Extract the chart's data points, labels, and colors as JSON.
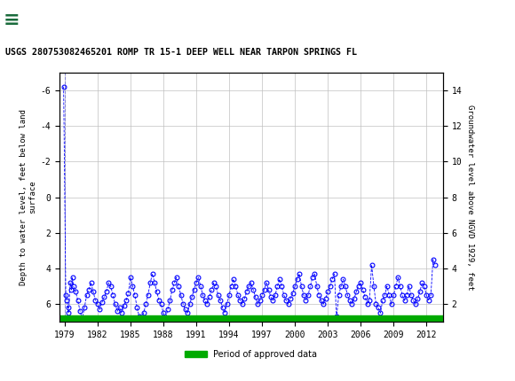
{
  "title": "USGS 280753082465201 ROMP TR 15-1 DEEP WELL NEAR TARPON SPRINGS FL",
  "ylabel_left": "Depth to water level, feet below land\nsurface",
  "ylabel_right": "Groundwater level above NGVD 1929, feet",
  "ylim_left": [
    7.0,
    -7.0
  ],
  "ylim_right": [
    1.0,
    15.0
  ],
  "xlim": [
    1978.5,
    2013.5
  ],
  "xticks": [
    1979,
    1982,
    1985,
    1988,
    1991,
    1994,
    1997,
    2000,
    2003,
    2006,
    2009,
    2012
  ],
  "yticks_left": [
    -6,
    -4,
    -2,
    0,
    2,
    4,
    6
  ],
  "yticks_right": [
    2,
    4,
    6,
    8,
    10,
    12,
    14
  ],
  "header_color": "#1a6b3c",
  "background_color": "#ffffff",
  "plot_bg_color": "#ffffff",
  "grid_color": "#c0c0c0",
  "data_color": "#0000ff",
  "legend_label": "Period of approved data",
  "legend_color": "#00aa00",
  "dashed_line_color": "#0000ff",
  "green_bar_color": "#00aa00",
  "data_points": [
    [
      1978.9,
      -6.2
    ],
    [
      1979.1,
      5.5
    ],
    [
      1979.2,
      5.8
    ],
    [
      1979.3,
      6.2
    ],
    [
      1979.35,
      6.5
    ],
    [
      1979.5,
      4.8
    ],
    [
      1979.6,
      5.2
    ],
    [
      1979.7,
      4.5
    ],
    [
      1979.8,
      5.0
    ],
    [
      1980.0,
      5.3
    ],
    [
      1980.2,
      5.8
    ],
    [
      1980.4,
      6.4
    ],
    [
      1980.6,
      6.8
    ],
    [
      1980.8,
      6.2
    ],
    [
      1981.0,
      5.5
    ],
    [
      1981.2,
      5.2
    ],
    [
      1981.4,
      4.8
    ],
    [
      1981.6,
      5.3
    ],
    [
      1981.8,
      5.8
    ],
    [
      1982.0,
      6.0
    ],
    [
      1982.2,
      6.3
    ],
    [
      1982.4,
      5.9
    ],
    [
      1982.6,
      5.6
    ],
    [
      1982.8,
      5.3
    ],
    [
      1983.0,
      4.8
    ],
    [
      1983.2,
      5.0
    ],
    [
      1983.4,
      5.5
    ],
    [
      1983.6,
      6.0
    ],
    [
      1983.8,
      6.4
    ],
    [
      1984.0,
      6.2
    ],
    [
      1984.2,
      6.5
    ],
    [
      1984.4,
      6.1
    ],
    [
      1984.6,
      5.8
    ],
    [
      1984.8,
      5.4
    ],
    [
      1985.0,
      4.5
    ],
    [
      1985.2,
      5.0
    ],
    [
      1985.4,
      5.5
    ],
    [
      1985.6,
      6.2
    ],
    [
      1985.8,
      6.7
    ],
    [
      1986.0,
      6.8
    ],
    [
      1986.2,
      6.5
    ],
    [
      1986.4,
      6.0
    ],
    [
      1986.6,
      5.5
    ],
    [
      1986.8,
      4.8
    ],
    [
      1987.0,
      4.3
    ],
    [
      1987.2,
      4.8
    ],
    [
      1987.4,
      5.3
    ],
    [
      1987.6,
      5.8
    ],
    [
      1987.8,
      6.0
    ],
    [
      1988.0,
      6.5
    ],
    [
      1988.2,
      6.8
    ],
    [
      1988.4,
      6.3
    ],
    [
      1988.6,
      5.8
    ],
    [
      1988.8,
      5.2
    ],
    [
      1989.0,
      4.8
    ],
    [
      1989.2,
      4.5
    ],
    [
      1989.4,
      5.0
    ],
    [
      1989.6,
      5.5
    ],
    [
      1989.8,
      6.0
    ],
    [
      1990.0,
      6.3
    ],
    [
      1990.2,
      6.5
    ],
    [
      1990.4,
      6.0
    ],
    [
      1990.6,
      5.6
    ],
    [
      1990.8,
      5.2
    ],
    [
      1991.0,
      4.8
    ],
    [
      1991.2,
      4.5
    ],
    [
      1991.4,
      5.0
    ],
    [
      1991.6,
      5.5
    ],
    [
      1991.8,
      5.8
    ],
    [
      1992.0,
      6.0
    ],
    [
      1992.2,
      5.6
    ],
    [
      1992.4,
      5.2
    ],
    [
      1992.6,
      4.8
    ],
    [
      1992.8,
      5.0
    ],
    [
      1993.0,
      5.5
    ],
    [
      1993.2,
      5.8
    ],
    [
      1993.4,
      6.2
    ],
    [
      1993.6,
      6.5
    ],
    [
      1993.8,
      6.0
    ],
    [
      1994.0,
      5.5
    ],
    [
      1994.2,
      5.0
    ],
    [
      1994.4,
      4.6
    ],
    [
      1994.6,
      5.0
    ],
    [
      1994.8,
      5.5
    ],
    [
      1995.0,
      5.8
    ],
    [
      1995.2,
      6.0
    ],
    [
      1995.4,
      5.7
    ],
    [
      1995.6,
      5.3
    ],
    [
      1995.8,
      5.0
    ],
    [
      1996.0,
      4.8
    ],
    [
      1996.2,
      5.2
    ],
    [
      1996.4,
      5.6
    ],
    [
      1996.6,
      6.0
    ],
    [
      1996.8,
      5.8
    ],
    [
      1997.0,
      5.5
    ],
    [
      1997.2,
      5.2
    ],
    [
      1997.4,
      4.8
    ],
    [
      1997.6,
      5.2
    ],
    [
      1997.8,
      5.6
    ],
    [
      1998.0,
      5.8
    ],
    [
      1998.2,
      5.5
    ],
    [
      1998.4,
      5.0
    ],
    [
      1998.6,
      4.6
    ],
    [
      1998.8,
      5.0
    ],
    [
      1999.0,
      5.5
    ],
    [
      1999.2,
      5.8
    ],
    [
      1999.4,
      6.0
    ],
    [
      1999.6,
      5.7
    ],
    [
      1999.8,
      5.4
    ],
    [
      2000.0,
      5.0
    ],
    [
      2000.2,
      4.6
    ],
    [
      2000.4,
      4.3
    ],
    [
      2000.6,
      5.0
    ],
    [
      2000.8,
      5.5
    ],
    [
      2001.0,
      5.8
    ],
    [
      2001.2,
      5.5
    ],
    [
      2001.4,
      5.0
    ],
    [
      2001.6,
      4.5
    ],
    [
      2001.8,
      4.3
    ],
    [
      2002.0,
      5.0
    ],
    [
      2002.2,
      5.5
    ],
    [
      2002.4,
      5.8
    ],
    [
      2002.6,
      6.0
    ],
    [
      2002.8,
      5.7
    ],
    [
      2003.0,
      5.3
    ],
    [
      2003.2,
      5.0
    ],
    [
      2003.4,
      4.6
    ],
    [
      2003.6,
      4.3
    ],
    [
      2003.8,
      6.7
    ],
    [
      2004.0,
      5.5
    ],
    [
      2004.2,
      5.0
    ],
    [
      2004.4,
      4.6
    ],
    [
      2004.6,
      5.0
    ],
    [
      2004.8,
      5.5
    ],
    [
      2005.0,
      5.8
    ],
    [
      2005.2,
      6.0
    ],
    [
      2005.4,
      5.7
    ],
    [
      2005.6,
      5.3
    ],
    [
      2005.8,
      5.0
    ],
    [
      2006.0,
      4.8
    ],
    [
      2006.2,
      5.2
    ],
    [
      2006.4,
      5.6
    ],
    [
      2006.6,
      6.0
    ],
    [
      2006.8,
      5.8
    ],
    [
      2007.0,
      3.8
    ],
    [
      2007.2,
      5.0
    ],
    [
      2007.4,
      6.0
    ],
    [
      2007.6,
      6.2
    ],
    [
      2007.8,
      6.5
    ],
    [
      2008.0,
      5.8
    ],
    [
      2008.2,
      5.5
    ],
    [
      2008.4,
      5.0
    ],
    [
      2008.6,
      5.5
    ],
    [
      2008.8,
      6.0
    ],
    [
      2009.0,
      5.5
    ],
    [
      2009.2,
      5.0
    ],
    [
      2009.4,
      4.5
    ],
    [
      2009.6,
      5.0
    ],
    [
      2009.8,
      5.5
    ],
    [
      2010.0,
      5.8
    ],
    [
      2010.2,
      5.5
    ],
    [
      2010.4,
      5.0
    ],
    [
      2010.6,
      5.5
    ],
    [
      2010.8,
      5.8
    ],
    [
      2011.0,
      6.0
    ],
    [
      2011.2,
      5.7
    ],
    [
      2011.4,
      5.3
    ],
    [
      2011.6,
      4.8
    ],
    [
      2011.8,
      5.0
    ],
    [
      2012.0,
      5.5
    ],
    [
      2012.2,
      5.8
    ],
    [
      2012.4,
      5.5
    ],
    [
      2012.6,
      3.5
    ],
    [
      2012.8,
      3.8
    ]
  ]
}
